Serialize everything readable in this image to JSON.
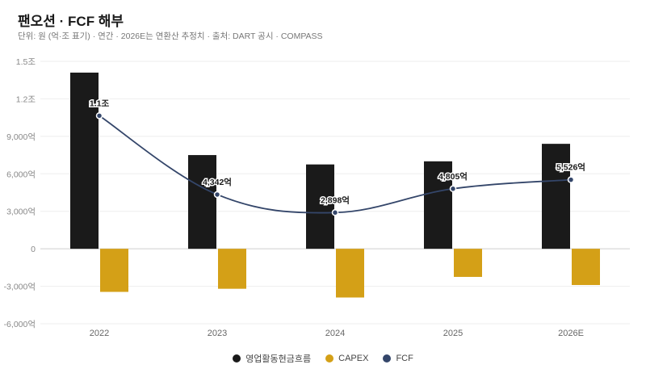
{
  "header": {
    "title": "팬오션 · FCF 해부",
    "subtitle": "단위: 원 (억·조 표기) · 연간 · 2026E는 연환산 추정치 · 출처: DART 공시 · COMPASS"
  },
  "colors": {
    "ocf": "#1a1a1a",
    "capex": "#d4a017",
    "fcf": "#34466a",
    "grid": "#eeeeee"
  },
  "chart_data": {
    "type": "bar",
    "title": "팬오션 · FCF 해부",
    "categories": [
      "2022",
      "2023",
      "2024",
      "2025",
      "2026E"
    ],
    "ylim": [
      -6000,
      15000
    ],
    "yticks": [
      {
        "value": 15000,
        "label": "1.5조"
      },
      {
        "value": 12000,
        "label": "1.2조"
      },
      {
        "value": 9000,
        "label": "9,000억"
      },
      {
        "value": 6000,
        "label": "6,000억"
      },
      {
        "value": 3000,
        "label": "3,000억"
      },
      {
        "value": 0,
        "label": "0"
      },
      {
        "value": -3000,
        "label": "-3,000억"
      },
      {
        "value": -6000,
        "label": "-6,000억"
      }
    ],
    "series": [
      {
        "name": "영업활동현금흐름",
        "type": "bar",
        "values": [
          14100,
          7500,
          6750,
          7000,
          8400
        ]
      },
      {
        "name": "CAPEX",
        "type": "bar",
        "values": [
          -3450,
          -3200,
          -3900,
          -2250,
          -2900
        ]
      },
      {
        "name": "FCF",
        "type": "line",
        "values": [
          10650,
          4342,
          2898,
          4805,
          5526
        ],
        "labels": [
          "1.1조",
          "4,342억",
          "2,898억",
          "4,805억",
          "5,526억"
        ]
      }
    ],
    "legend": "bottom",
    "grid": true
  }
}
